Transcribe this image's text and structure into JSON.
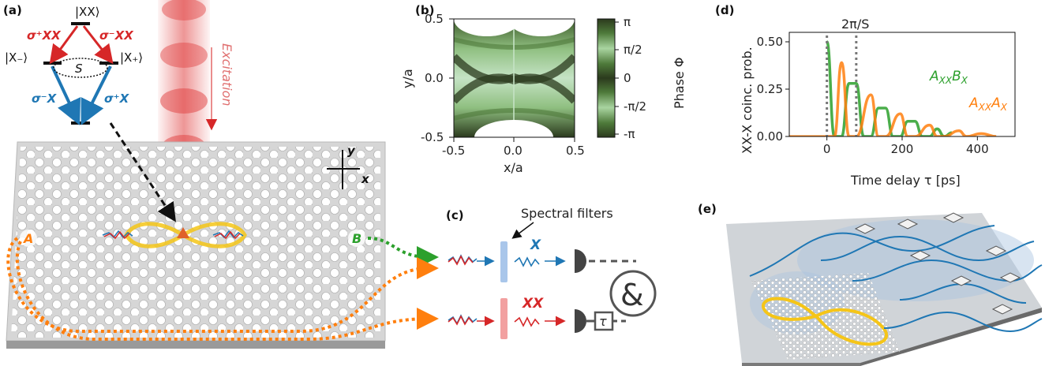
{
  "colors": {
    "red": "#d62728",
    "blue": "#1f77b4",
    "green": "#2ca02c",
    "orange": "#ff7f0e",
    "membrane": "#cfcfcf",
    "gold": "#f5c518",
    "laser": "#e04040",
    "phase_dark": "#2b3a1d",
    "phase_light": "#c5e3c5"
  },
  "panel_a": {
    "label": "(a)",
    "state_xx": "|XX⟩",
    "state_xminus": "|X₋⟩",
    "state_xplus": "|X₊⟩",
    "splitting": "S",
    "sigma_xx_plus": "σ⁺XX",
    "sigma_xx_minus": "σ⁻XX",
    "sigma_x_minus": "σ⁻X",
    "sigma_x_plus": "σ⁺X",
    "excitation": "Excitation",
    "axis_y": "y",
    "axis_x": "x",
    "port_a": "A",
    "port_b": "B"
  },
  "panel_b": {
    "label": "(b)",
    "xlabel": "x/a",
    "ylabel": "y/a",
    "xticks": [
      "-0.5",
      "0.0",
      "0.5"
    ],
    "yticks": [
      "0.5",
      "0.0",
      "-0.5"
    ],
    "colorbar_label": "Phase Φ",
    "colorbar_ticks": [
      "π",
      "π/2",
      "0",
      "-π/2",
      "-π"
    ]
  },
  "panel_c": {
    "label": "(c)",
    "filters_label": "Spectral filters",
    "x_label": "X",
    "xx_label": "XX",
    "coincidence": "&",
    "delay": "τ"
  },
  "panel_d": {
    "label": "(d)",
    "period_label": "2π/S",
    "xlabel": "Time delay τ [ps]",
    "ylabel": "XX-X coinc. prob.",
    "xticks": [
      "0",
      "200",
      "400"
    ],
    "yticks": [
      "0.00",
      "0.25",
      "0.50"
    ],
    "series_1": "AXXBX",
    "series_2": "AXXAX"
  },
  "panel_e": {
    "label": "(e)"
  },
  "chart_data": {
    "type": "line",
    "xlabel": "Time delay τ [ps]",
    "ylabel": "XX-X coinc. prob.",
    "xlim": [
      -100,
      500
    ],
    "ylim": [
      0,
      0.55
    ],
    "period_ps": 78,
    "series": [
      {
        "name": "AXXBX",
        "color": "#2ca02c",
        "points": [
          [
            0,
            0.5
          ],
          [
            20,
            0
          ],
          [
            39,
            0
          ],
          [
            59,
            0.28
          ],
          [
            78,
            0.28
          ],
          [
            98,
            0
          ],
          [
            117,
            0
          ],
          [
            137,
            0.15
          ],
          [
            156,
            0.15
          ],
          [
            176,
            0
          ],
          [
            195,
            0
          ],
          [
            215,
            0.08
          ],
          [
            234,
            0.08
          ],
          [
            254,
            0
          ],
          [
            273,
            0
          ],
          [
            293,
            0.04
          ],
          [
            312,
            0
          ],
          [
            332,
            0.02
          ]
        ]
      },
      {
        "name": "AXXAX",
        "color": "#ff7f0e",
        "points": [
          [
            0,
            0
          ],
          [
            20,
            0
          ],
          [
            39,
            0.39
          ],
          [
            59,
            0
          ],
          [
            78,
            0
          ],
          [
            117,
            0.22
          ],
          [
            137,
            0
          ],
          [
            156,
            0
          ],
          [
            195,
            0.12
          ],
          [
            215,
            0
          ],
          [
            234,
            0
          ],
          [
            273,
            0.06
          ],
          [
            293,
            0
          ],
          [
            312,
            0
          ],
          [
            351,
            0.03
          ],
          [
            371,
            0
          ],
          [
            410,
            0.015
          ],
          [
            450,
            0
          ]
        ]
      }
    ]
  }
}
